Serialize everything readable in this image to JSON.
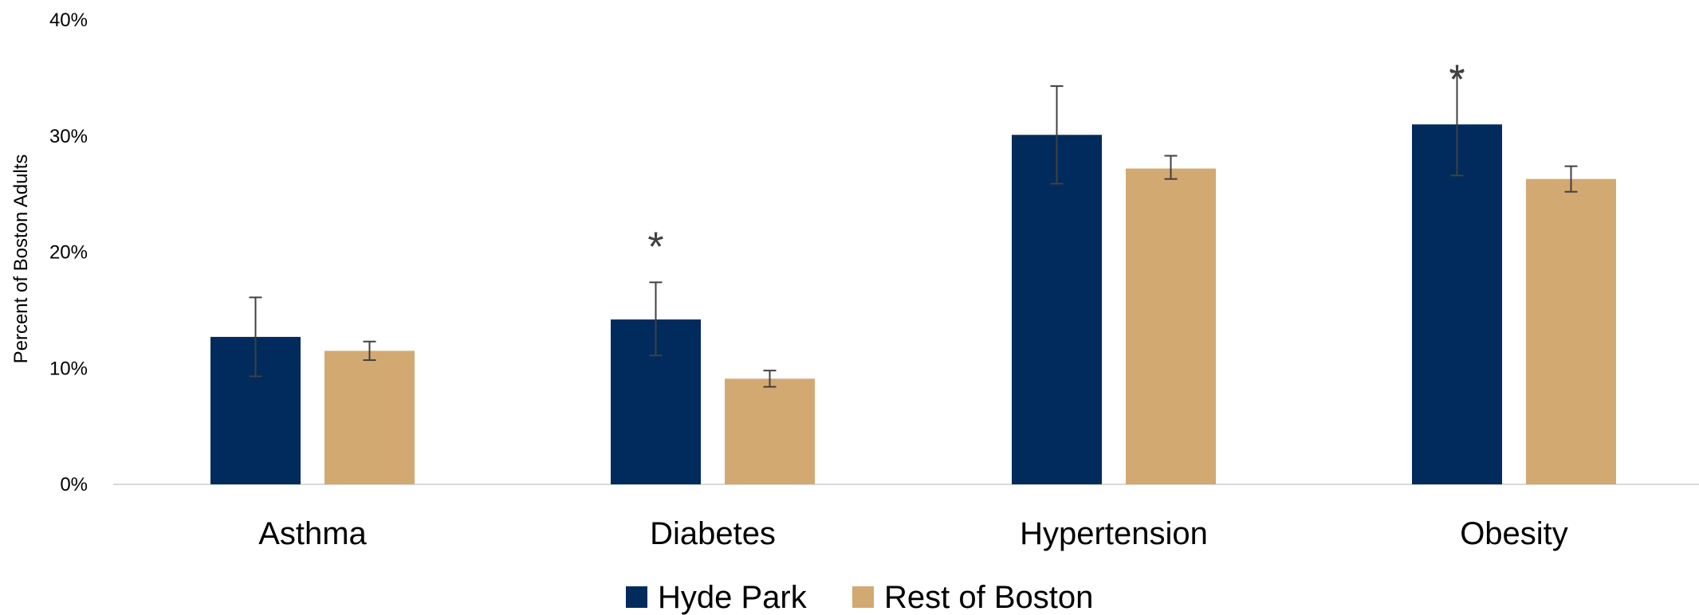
{
  "chart_data": {
    "type": "bar",
    "ylabel": "Percent of Boston Adults",
    "ylim": [
      0,
      40
    ],
    "yticks": [
      0,
      10,
      20,
      30,
      40
    ],
    "ytick_labels": [
      "0%",
      "10%",
      "20%",
      "30%",
      "40%"
    ],
    "categories": [
      "Asthma",
      "Diabetes",
      "Hypertension",
      "Obesity"
    ],
    "series": [
      {
        "name": "Hyde Park",
        "color": "#002b5c",
        "values": [
          12.7,
          14.2,
          30.1,
          31.0
        ],
        "error_low": [
          9.3,
          11.1,
          25.9,
          26.6
        ],
        "error_high": [
          16.1,
          17.4,
          34.3,
          35.5
        ]
      },
      {
        "name": "Rest of Boston",
        "color": "#d3a972",
        "values": [
          11.5,
          9.1,
          27.2,
          26.3
        ],
        "error_low": [
          10.7,
          8.4,
          26.3,
          25.2
        ],
        "error_high": [
          12.3,
          9.8,
          28.3,
          27.4
        ]
      }
    ],
    "annotations": [
      {
        "text": "*",
        "category": "Diabetes",
        "series": "Hyde Park",
        "y": 21.3
      },
      {
        "text": "*",
        "category": "Obesity",
        "series": "Hyde Park",
        "y": 35.7
      }
    ],
    "grid": false,
    "legend": "bottom-center"
  }
}
